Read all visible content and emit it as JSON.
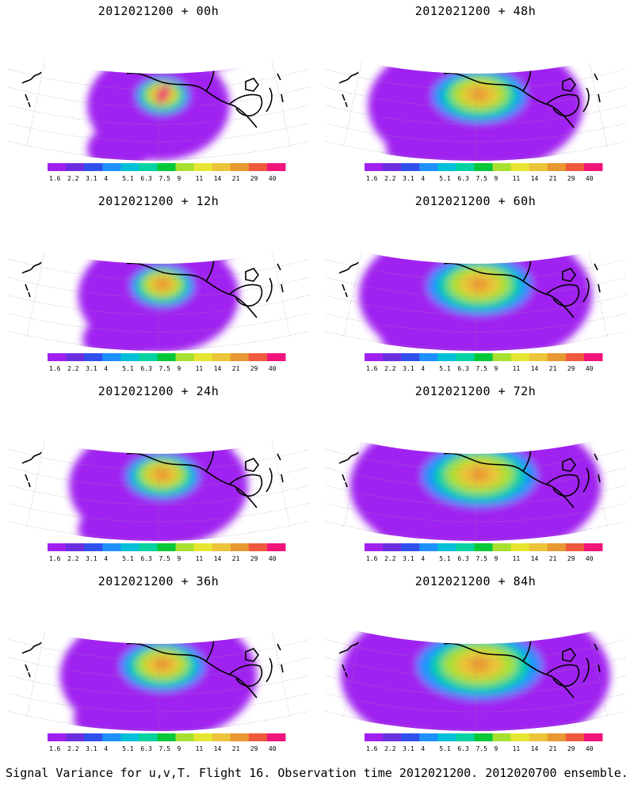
{
  "figure": {
    "caption": "Signal Variance for u,v,T. Flight 16. Observation time 2012021200. 2012020700 ensemble."
  },
  "colorbar": {
    "labels": [
      "1.6",
      "2.2",
      "3.1",
      "4",
      "5.1",
      "6.3",
      "7.5",
      "9",
      "11",
      "14",
      "21",
      "29",
      "40"
    ],
    "colors": [
      "#a020f0",
      "#6a2ee0",
      "#3050ee",
      "#1e90ff",
      "#00bfd8",
      "#00d2a0",
      "#00c838",
      "#a8e030",
      "#e6e632",
      "#ecc43a",
      "#e89830",
      "#f05a3c",
      "#f0147a"
    ]
  },
  "panels": [
    {
      "title": "2012021200 + 00h",
      "lead_hours": 0
    },
    {
      "title": "2012021200 + 48h",
      "lead_hours": 48
    },
    {
      "title": "2012021200 + 12h",
      "lead_hours": 12
    },
    {
      "title": "2012021200 + 60h",
      "lead_hours": 60
    },
    {
      "title": "2012021200 + 24h",
      "lead_hours": 24
    },
    {
      "title": "2012021200 + 72h",
      "lead_hours": 72
    },
    {
      "title": "2012021200 + 36h",
      "lead_hours": 36
    },
    {
      "title": "2012021200 + 84h",
      "lead_hours": 84
    }
  ]
}
